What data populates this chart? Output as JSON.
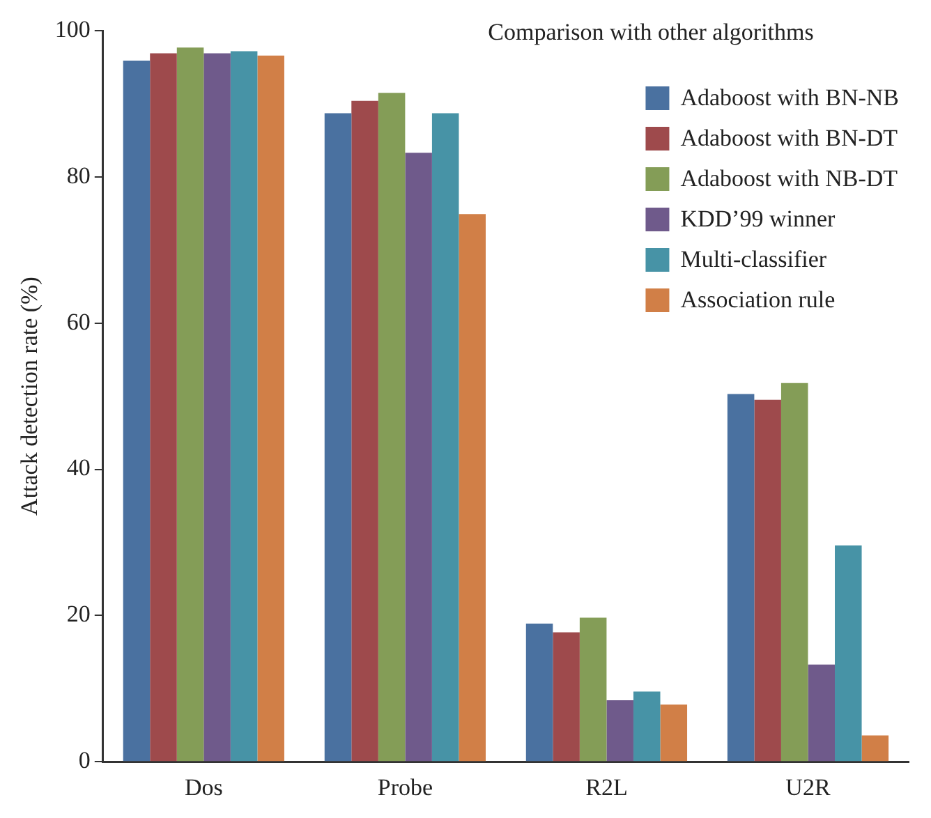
{
  "chart_data": {
    "type": "bar",
    "title": "Comparison with other algorithms",
    "ylabel": "Attack detection rate (%)",
    "categories": [
      "Dos",
      "Probe",
      "R2L",
      "U2R"
    ],
    "series": [
      {
        "name": "Adaboost with BN-NB",
        "color": "#4a71a0",
        "values": [
          95.9,
          88.7,
          18.9,
          50.3
        ]
      },
      {
        "name": "Adaboost with BN-DT",
        "color": "#9e4a4c",
        "values": [
          96.9,
          90.4,
          17.7,
          49.5
        ]
      },
      {
        "name": "Adaboost with NB-DT",
        "color": "#849d57",
        "values": [
          97.7,
          91.5,
          19.7,
          51.8
        ]
      },
      {
        "name": "KDD’99 winner",
        "color": "#6f5a8b",
        "values": [
          96.9,
          83.3,
          8.4,
          13.3
        ]
      },
      {
        "name": "Multi-classifier",
        "color": "#4793a6",
        "values": [
          97.2,
          88.7,
          9.6,
          29.6
        ]
      },
      {
        "name": "Association rule",
        "color": "#d17f47",
        "values": [
          96.6,
          74.9,
          7.8,
          3.6
        ]
      }
    ],
    "ylim": [
      0,
      100
    ],
    "yticks": [
      0,
      20,
      40,
      60,
      80,
      100
    ],
    "grid": false,
    "legend": "top right"
  }
}
